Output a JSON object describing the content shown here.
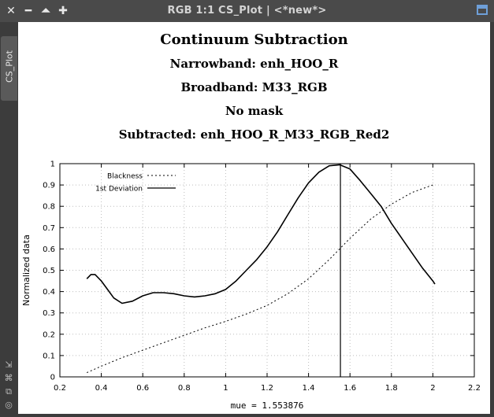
{
  "window": {
    "title": "RGB 1:1 CS_Plot | <*new*>",
    "side_tab": "CS_Plot",
    "titlebar_icons": [
      "close-icon",
      "minimize-icon",
      "shade-icon",
      "maximize-icon"
    ],
    "side_icons": [
      "collapse-arrow-icon",
      "fit-icon",
      "clone-icon",
      "settings-icon"
    ]
  },
  "plot_header": {
    "title": "Continuum Subtraction",
    "narrowband": "Narrowband: enh_HOO_R",
    "broadband": "Broadband: M33_RGB",
    "mask": "No mask",
    "subtracted": "Subtracted: enh_HOO_R_M33_RGB_Red2"
  },
  "chart_data": {
    "type": "line",
    "xlabel": "mue = 1.553876",
    "ylabel": "Normalized data",
    "xlim": [
      0.2,
      2.2
    ],
    "ylim": [
      0,
      1
    ],
    "xticks": [
      0.2,
      0.4,
      0.6,
      0.8,
      1,
      1.2,
      1.4,
      1.6,
      1.8,
      2,
      2.2
    ],
    "yticks": [
      0,
      0.1,
      0.2,
      0.3,
      0.4,
      0.5,
      0.6,
      0.7,
      0.8,
      0.9,
      1
    ],
    "grid": true,
    "legend": "top-left",
    "vertical_marker_x": 1.553876,
    "series": [
      {
        "name": "Blackness",
        "style": "dotted",
        "x": [
          0.33,
          0.4,
          0.5,
          0.6,
          0.7,
          0.8,
          0.9,
          1.0,
          1.1,
          1.2,
          1.3,
          1.4,
          1.5,
          1.6,
          1.7,
          1.8,
          1.9,
          2.0
        ],
        "y": [
          0.02,
          0.05,
          0.09,
          0.125,
          0.16,
          0.195,
          0.23,
          0.26,
          0.295,
          0.335,
          0.39,
          0.46,
          0.55,
          0.65,
          0.74,
          0.81,
          0.865,
          0.9
        ]
      },
      {
        "name": "1st Deviation",
        "style": "solid",
        "x": [
          0.33,
          0.35,
          0.37,
          0.4,
          0.43,
          0.46,
          0.5,
          0.55,
          0.6,
          0.65,
          0.7,
          0.75,
          0.8,
          0.85,
          0.9,
          0.95,
          1.0,
          1.05,
          1.1,
          1.15,
          1.2,
          1.25,
          1.3,
          1.35,
          1.4,
          1.45,
          1.5,
          1.55,
          1.6,
          1.65,
          1.7,
          1.75,
          1.8,
          1.85,
          1.9,
          1.95,
          2.0,
          2.01
        ],
        "y": [
          0.46,
          0.48,
          0.48,
          0.45,
          0.41,
          0.37,
          0.345,
          0.355,
          0.38,
          0.395,
          0.395,
          0.39,
          0.38,
          0.375,
          0.38,
          0.39,
          0.41,
          0.45,
          0.5,
          0.55,
          0.61,
          0.68,
          0.76,
          0.84,
          0.91,
          0.96,
          0.99,
          0.995,
          0.975,
          0.92,
          0.86,
          0.8,
          0.72,
          0.65,
          0.58,
          0.51,
          0.45,
          0.435
        ]
      }
    ]
  }
}
